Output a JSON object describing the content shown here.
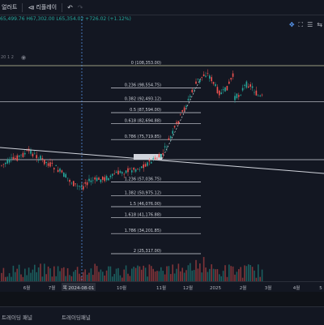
{
  "toolbar": {
    "alert_label": "얼러트",
    "replay_label": "리플레이",
    "undo_icon": "undo-icon",
    "redo_icon": "redo-icon"
  },
  "legend": {
    "ohlc_text": "65,499.76  H67,302.00  L65,354.02  +726.02 (+1.12%)",
    "indicator_text": "20 1 2"
  },
  "fib_levels": [
    {
      "label": "0 (108,353.00)",
      "price": 108353
    },
    {
      "label": "0.236 (98,554.75)",
      "price": 98554.75
    },
    {
      "label": "0.382 (92,493.12)",
      "price": 92493.12
    },
    {
      "label": "0.5 (87,594.00)",
      "price": 87594
    },
    {
      "label": "0.618 (82,694.88)",
      "price": 82694.88
    },
    {
      "label": "0.786 (75,719.85)",
      "price": 75719.85
    },
    {
      "label": "1 (66,835.00)",
      "price": 66835
    },
    {
      "label": "1.236 (57,036.75)",
      "price": 57036.75
    },
    {
      "label": "1.382 (50,975.12)",
      "price": 50975.12
    },
    {
      "label": "1.5 (46,076.00)",
      "price": 46076
    },
    {
      "label": "1.618 (41,176.88)",
      "price": 41176.88
    },
    {
      "label": "1.786 (34,201.85)",
      "price": 34201.85
    },
    {
      "label": "2 (25,317.00)",
      "price": 25317
    }
  ],
  "time_axis": {
    "labels": [
      "6월",
      "7월",
      "10월",
      "11월",
      "12월",
      "2025",
      "2월",
      "3월",
      "4월",
      "5"
    ],
    "highlight": "목 2024-08-01"
  },
  "bottom_panel": {
    "tab1": "트레이딩 패널",
    "tab2": "트레이딩패널"
  },
  "colors": {
    "background": "#131722",
    "up": "#26a69a",
    "down": "#ef5350",
    "fib_line": "#d1d4dc",
    "fib_top": "#c9c9a0",
    "trendline": "#d1d4dc",
    "marker": "#5b9cf6"
  }
}
